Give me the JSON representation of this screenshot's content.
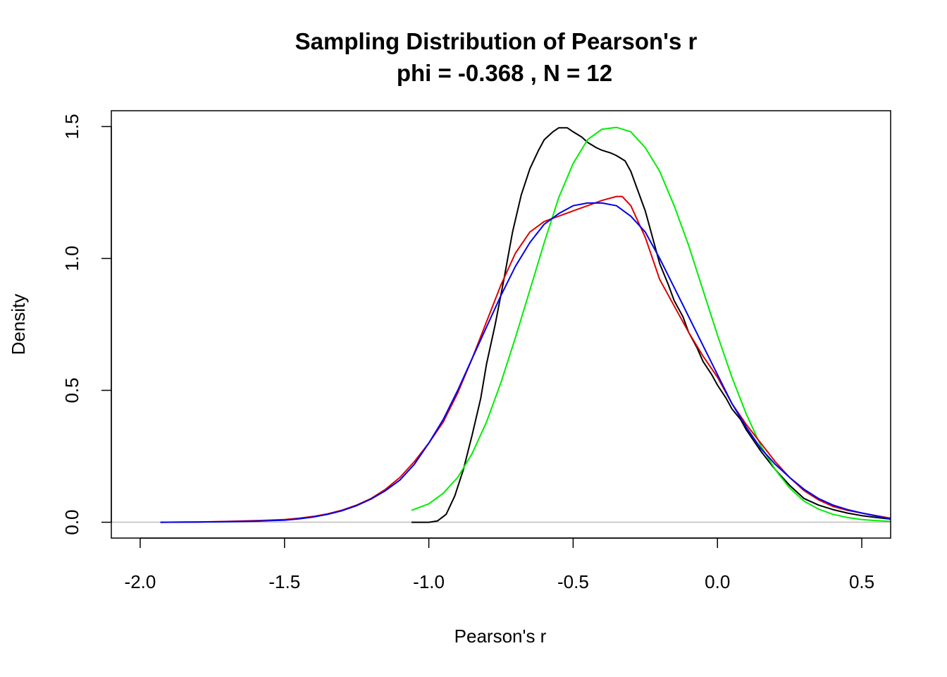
{
  "chart_data": {
    "type": "line",
    "title": "Sampling Distribution of Pearson's r",
    "subtitle": "phi =  -0.368 , N =  12",
    "xlabel": "Pearson's r",
    "ylabel": "Density",
    "xlim": [
      -2.1,
      0.6
    ],
    "ylim": [
      -0.06,
      1.56
    ],
    "xticks": [
      -2.0,
      -1.5,
      -1.0,
      -0.5,
      0.0,
      0.5
    ],
    "xtick_labels": [
      "-2.0",
      "-1.5",
      "-1.0",
      "-0.5",
      "0.0",
      "0.5"
    ],
    "yticks": [
      0.0,
      0.5,
      1.0,
      1.5
    ],
    "ytick_labels": [
      "0.0",
      "0.5",
      "1.0",
      "1.5"
    ],
    "baseline": 0,
    "grid": false,
    "series": [
      {
        "color": "#000000",
        "x": [
          -1.06,
          -1.0,
          -0.97,
          -0.94,
          -0.91,
          -0.88,
          -0.85,
          -0.82,
          -0.8,
          -0.77,
          -0.74,
          -0.71,
          -0.68,
          -0.65,
          -0.62,
          -0.6,
          -0.57,
          -0.55,
          -0.52,
          -0.5,
          -0.47,
          -0.45,
          -0.42,
          -0.4,
          -0.37,
          -0.35,
          -0.32,
          -0.3,
          -0.28,
          -0.25,
          -0.22,
          -0.2,
          -0.17,
          -0.15,
          -0.12,
          -0.1,
          -0.07,
          -0.05,
          -0.02,
          0.0,
          0.03,
          0.05,
          0.08,
          0.1,
          0.15,
          0.2,
          0.25,
          0.3,
          0.35,
          0.4,
          0.45,
          0.5,
          0.55,
          0.6
        ],
        "y": [
          0.0,
          0.0,
          0.005,
          0.03,
          0.1,
          0.2,
          0.33,
          0.47,
          0.6,
          0.75,
          0.92,
          1.1,
          1.24,
          1.34,
          1.41,
          1.45,
          1.48,
          1.495,
          1.495,
          1.48,
          1.46,
          1.44,
          1.42,
          1.41,
          1.4,
          1.39,
          1.37,
          1.33,
          1.27,
          1.18,
          1.06,
          0.98,
          0.9,
          0.84,
          0.78,
          0.72,
          0.66,
          0.61,
          0.56,
          0.52,
          0.47,
          0.43,
          0.39,
          0.35,
          0.27,
          0.2,
          0.14,
          0.09,
          0.065,
          0.048,
          0.035,
          0.025,
          0.018,
          0.012
        ]
      },
      {
        "color": "#00ee00",
        "x": [
          -1.06,
          -1.0,
          -0.95,
          -0.9,
          -0.85,
          -0.8,
          -0.75,
          -0.7,
          -0.65,
          -0.6,
          -0.55,
          -0.5,
          -0.45,
          -0.4,
          -0.35,
          -0.3,
          -0.25,
          -0.2,
          -0.15,
          -0.1,
          -0.05,
          0.0,
          0.05,
          0.1,
          0.15,
          0.2,
          0.25,
          0.3,
          0.35,
          0.4,
          0.45,
          0.5,
          0.55,
          0.6
        ],
        "y": [
          0.045,
          0.07,
          0.11,
          0.17,
          0.26,
          0.38,
          0.53,
          0.7,
          0.88,
          1.06,
          1.23,
          1.36,
          1.45,
          1.49,
          1.497,
          1.48,
          1.42,
          1.33,
          1.2,
          1.05,
          0.88,
          0.71,
          0.55,
          0.41,
          0.29,
          0.2,
          0.13,
          0.08,
          0.05,
          0.03,
          0.018,
          0.01,
          0.006,
          0.003
        ]
      },
      {
        "color": "#dd0000",
        "x": [
          -1.93,
          -1.8,
          -1.7,
          -1.6,
          -1.5,
          -1.45,
          -1.4,
          -1.35,
          -1.3,
          -1.25,
          -1.2,
          -1.15,
          -1.1,
          -1.05,
          -1.0,
          -0.95,
          -0.9,
          -0.85,
          -0.8,
          -0.75,
          -0.7,
          -0.65,
          -0.6,
          -0.55,
          -0.5,
          -0.45,
          -0.4,
          -0.35,
          -0.33,
          -0.3,
          -0.25,
          -0.2,
          -0.15,
          -0.1,
          -0.05,
          0.0,
          0.05,
          0.1,
          0.15,
          0.2,
          0.25,
          0.3,
          0.35,
          0.4,
          0.45,
          0.5,
          0.55,
          0.6
        ],
        "y": [
          0.0,
          0.001,
          0.003,
          0.006,
          0.01,
          0.015,
          0.022,
          0.032,
          0.046,
          0.065,
          0.09,
          0.125,
          0.17,
          0.23,
          0.3,
          0.38,
          0.49,
          0.62,
          0.76,
          0.9,
          1.02,
          1.1,
          1.14,
          1.16,
          1.18,
          1.2,
          1.22,
          1.235,
          1.235,
          1.2,
          1.08,
          0.92,
          0.82,
          0.72,
          0.63,
          0.55,
          0.45,
          0.37,
          0.3,
          0.23,
          0.17,
          0.12,
          0.085,
          0.06,
          0.045,
          0.035,
          0.025,
          0.015
        ]
      },
      {
        "color": "#0000ee",
        "x": [
          -1.93,
          -1.8,
          -1.7,
          -1.6,
          -1.5,
          -1.45,
          -1.4,
          -1.35,
          -1.3,
          -1.25,
          -1.2,
          -1.15,
          -1.1,
          -1.05,
          -1.0,
          -0.95,
          -0.9,
          -0.85,
          -0.8,
          -0.75,
          -0.7,
          -0.65,
          -0.6,
          -0.55,
          -0.5,
          -0.45,
          -0.4,
          -0.35,
          -0.3,
          -0.25,
          -0.2,
          -0.15,
          -0.1,
          -0.05,
          0.0,
          0.05,
          0.1,
          0.15,
          0.2,
          0.25,
          0.3,
          0.35,
          0.4,
          0.45,
          0.5,
          0.55,
          0.6
        ],
        "y": [
          0.0,
          0.001,
          0.002,
          0.004,
          0.008,
          0.013,
          0.02,
          0.03,
          0.044,
          0.063,
          0.088,
          0.12,
          0.16,
          0.22,
          0.3,
          0.39,
          0.5,
          0.62,
          0.74,
          0.86,
          0.97,
          1.06,
          1.13,
          1.17,
          1.2,
          1.21,
          1.21,
          1.2,
          1.16,
          1.1,
          1.0,
          0.89,
          0.78,
          0.67,
          0.56,
          0.45,
          0.36,
          0.28,
          0.22,
          0.17,
          0.125,
          0.09,
          0.065,
          0.048,
          0.035,
          0.024,
          0.012
        ]
      }
    ]
  }
}
